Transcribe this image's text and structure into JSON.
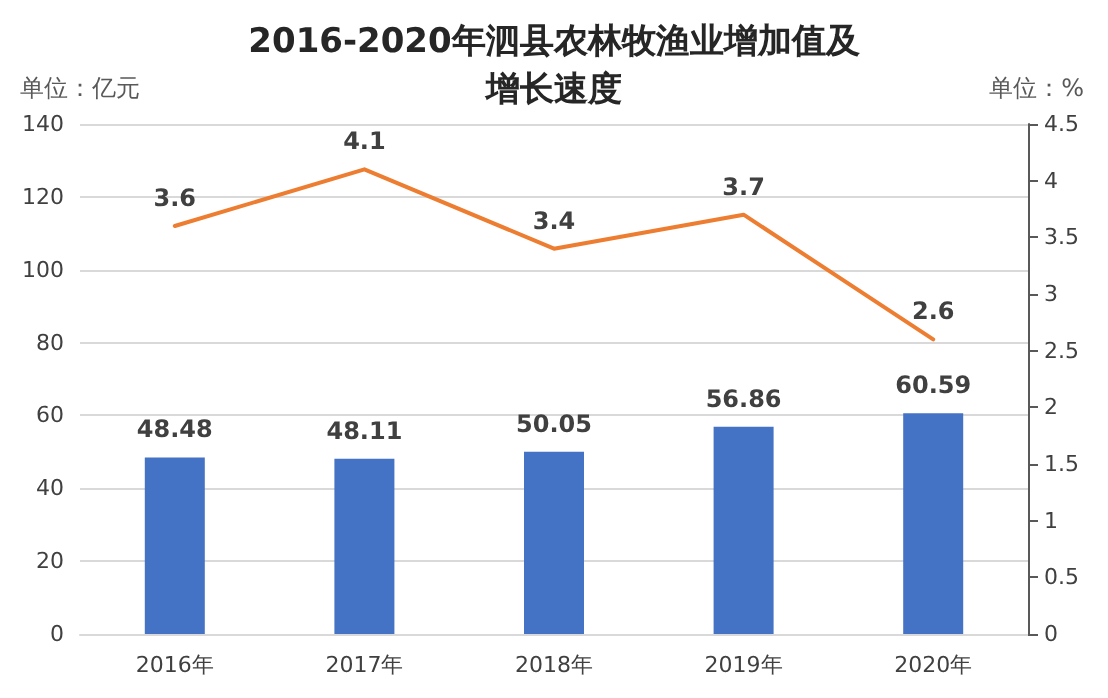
{
  "chart_data": {
    "type": "bar",
    "title": "2016-2020年泗县农林牧渔业增加值及增长速度",
    "ylabel": "单位：亿元",
    "y2label": "单位：%",
    "categories": [
      "2016年",
      "2017年",
      "2018年",
      "2019年",
      "2020年"
    ],
    "series": [
      {
        "color": "#4472c4",
        "values": [
          48.48,
          48.11,
          50.05,
          56.86,
          60.59
        ]
      },
      {
        "type": "line",
        "axis": "y2",
        "color": "#ed7d31",
        "values": [
          3.6,
          4.1,
          3.4,
          3.7,
          2.6
        ],
        "marker": "none"
      }
    ],
    "ylim": [
      0,
      140
    ],
    "yticks": [
      0,
      20,
      40,
      60,
      80,
      100,
      120,
      140
    ],
    "y2lim": [
      0,
      4.5
    ],
    "y2ticks": [
      0,
      0.5,
      1,
      1.5,
      2,
      2.5,
      3,
      3.5,
      4,
      4.5
    ],
    "grid": "y",
    "data_labels": true
  }
}
